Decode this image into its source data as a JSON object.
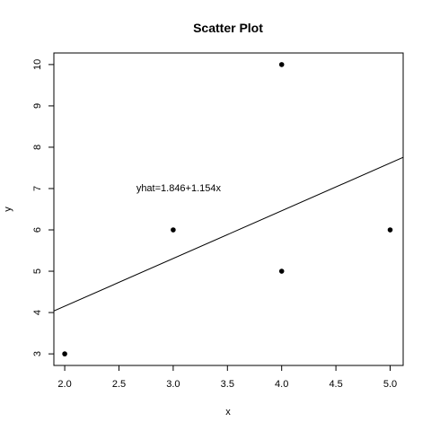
{
  "chart_data": {
    "type": "scatter",
    "title": "Scatter Plot",
    "xlabel": "x",
    "ylabel": "y",
    "xlim": [
      1.9,
      5.12
    ],
    "ylim": [
      2.72,
      10.28
    ],
    "x_ticks": [
      2.0,
      2.5,
      3.0,
      3.5,
      4.0,
      4.5,
      5.0
    ],
    "x_tick_labels": [
      "2.0",
      "2.5",
      "3.0",
      "3.5",
      "4.0",
      "4.5",
      "5.0"
    ],
    "y_ticks": [
      3,
      4,
      5,
      6,
      7,
      8,
      9,
      10
    ],
    "y_tick_labels": [
      "3",
      "4",
      "5",
      "6",
      "7",
      "8",
      "9",
      "10"
    ],
    "grid": false,
    "points": [
      {
        "x": 2,
        "y": 3
      },
      {
        "x": 3,
        "y": 6
      },
      {
        "x": 4,
        "y": 10
      },
      {
        "x": 4,
        "y": 5
      },
      {
        "x": 5,
        "y": 6
      }
    ],
    "regression_line": {
      "intercept": 1.846,
      "slope": 1.154
    },
    "annotation": {
      "text": "yhat=1.846+1.154x",
      "x": 3.05,
      "y": 7.0
    }
  }
}
